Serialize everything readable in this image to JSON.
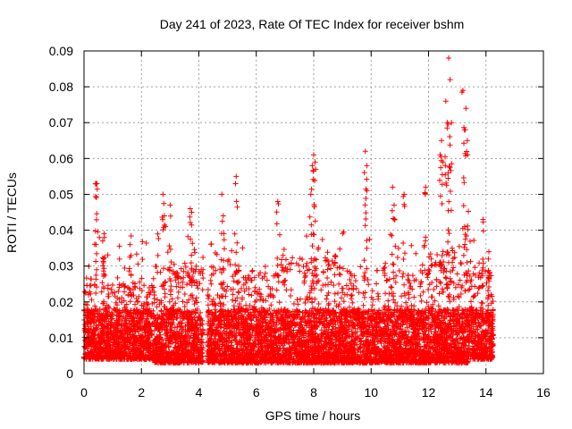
{
  "chart_data": {
    "type": "scatter",
    "title": "Day 241 of 2023, Rate Of TEC Index for receiver bshm",
    "xlabel": "GPS time / hours",
    "ylabel": "ROTI / TECUs",
    "xlim": [
      0,
      16
    ],
    "ylim": [
      0,
      0.09
    ],
    "x_ticks": [
      "0",
      "2",
      "4",
      "6",
      "8",
      "10",
      "12",
      "14",
      "16"
    ],
    "y_ticks": [
      "0",
      "0.01",
      "0.02",
      "0.03",
      "0.04",
      "0.05",
      "0.06",
      "0.07",
      "0.08",
      "0.09"
    ],
    "grid": true,
    "marker": "+",
    "color": "#ff0000",
    "notable_points": {
      "x": [
        0.4,
        0.45,
        0.65,
        0.7,
        1.6,
        2.75,
        2.8,
        3.0,
        3.7,
        3.75,
        4.8,
        4.85,
        5.3,
        6.75,
        7.9,
        7.95,
        8.0,
        8.05,
        9.8,
        9.85,
        10.75,
        10.8,
        11.15,
        11.9,
        12.4,
        12.45,
        12.5,
        12.6,
        12.65,
        12.7,
        12.75,
        12.8,
        13.2,
        13.25,
        13.3,
        13.35,
        13.9,
        14.1
      ],
      "y": [
        0.053,
        0.053,
        0.037,
        0.039,
        0.036,
        0.05,
        0.044,
        0.047,
        0.046,
        0.045,
        0.05,
        0.044,
        0.055,
        0.048,
        0.05,
        0.058,
        0.061,
        0.059,
        0.062,
        0.058,
        0.052,
        0.047,
        0.05,
        0.052,
        0.061,
        0.065,
        0.059,
        0.076,
        0.07,
        0.088,
        0.082,
        0.07,
        0.079,
        0.068,
        0.074,
        0.065,
        0.043,
        0.034
      ]
    },
    "segments": [
      {
        "x": [
          0.0,
          0.45
        ],
        "y_floor": 0.004,
        "y_typ_max": 0.022
      },
      {
        "x": [
          0.45,
          1.65
        ],
        "y_floor": 0.004,
        "y_typ_max": 0.02
      },
      {
        "x": [
          1.65,
          2.45
        ],
        "y_floor": 0.004,
        "y_typ_max": 0.022
      },
      {
        "x": [
          2.45,
          4.15
        ],
        "y_floor": 0.003,
        "y_typ_max": 0.025
      },
      {
        "x": [
          4.3,
          5.4
        ],
        "y_floor": 0.003,
        "y_typ_max": 0.025
      },
      {
        "x": [
          5.4,
          6.8
        ],
        "y_floor": 0.003,
        "y_typ_max": 0.025
      },
      {
        "x": [
          6.8,
          9.0
        ],
        "y_floor": 0.003,
        "y_typ_max": 0.028
      },
      {
        "x": [
          9.0,
          11.0
        ],
        "y_floor": 0.003,
        "y_typ_max": 0.025
      },
      {
        "x": [
          11.0,
          12.0
        ],
        "y_floor": 0.003,
        "y_typ_max": 0.024
      },
      {
        "x": [
          12.0,
          13.4
        ],
        "y_floor": 0.003,
        "y_typ_max": 0.03
      },
      {
        "x": [
          13.4,
          14.25
        ],
        "y_floor": 0.004,
        "y_typ_max": 0.026
      }
    ]
  }
}
